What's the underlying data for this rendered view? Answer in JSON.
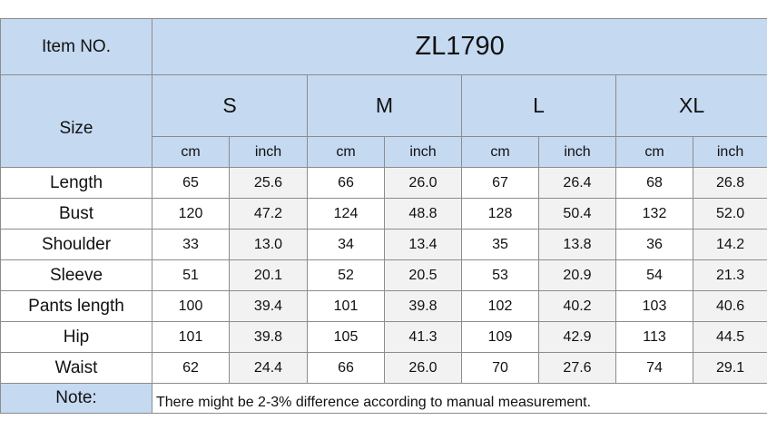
{
  "header": {
    "item_label": "Item NO.",
    "item_no": "ZL1790"
  },
  "size_label": "Size",
  "sizes": [
    "S",
    "M",
    "L",
    "XL"
  ],
  "units": [
    "cm",
    "inch"
  ],
  "rows": [
    {
      "name": "Length",
      "values": [
        "65",
        "25.6",
        "66",
        "26.0",
        "67",
        "26.4",
        "68",
        "26.8"
      ]
    },
    {
      "name": "Bust",
      "values": [
        "120",
        "47.2",
        "124",
        "48.8",
        "128",
        "50.4",
        "132",
        "52.0"
      ]
    },
    {
      "name": "Shoulder",
      "values": [
        "33",
        "13.0",
        "34",
        "13.4",
        "35",
        "13.8",
        "36",
        "14.2"
      ]
    },
    {
      "name": "Sleeve",
      "values": [
        "51",
        "20.1",
        "52",
        "20.5",
        "53",
        "20.9",
        "54",
        "21.3"
      ]
    },
    {
      "name": "Pants length",
      "values": [
        "100",
        "39.4",
        "101",
        "39.8",
        "102",
        "40.2",
        "103",
        "40.6"
      ]
    },
    {
      "name": "Hip",
      "values": [
        "101",
        "39.8",
        "105",
        "41.3",
        "109",
        "42.9",
        "113",
        "44.5"
      ]
    },
    {
      "name": "Waist",
      "values": [
        "62",
        "24.4",
        "66",
        "26.0",
        "70",
        "27.6",
        "74",
        "29.1"
      ]
    }
  ],
  "note": {
    "label": "Note:",
    "text": "There might be 2-3% difference according to manual measurement."
  }
}
